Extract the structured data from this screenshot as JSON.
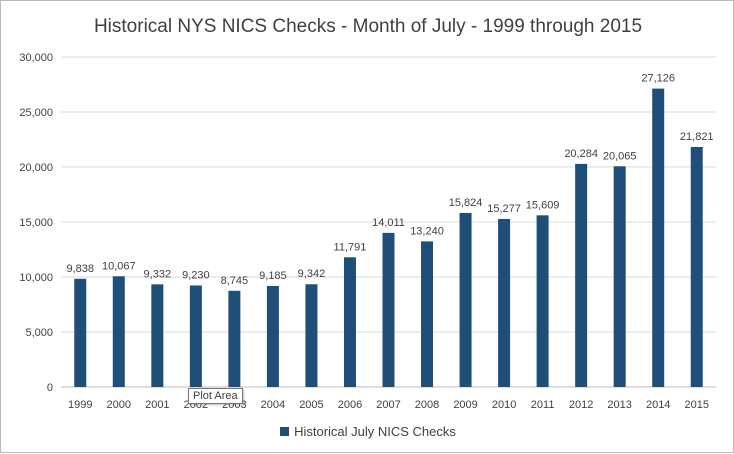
{
  "chart_data": {
    "type": "bar",
    "title": "Historical NYS NICS Checks - Month of July - 1999 through 2015",
    "xlabel": "",
    "ylabel": "",
    "categories": [
      "1999",
      "2000",
      "2001",
      "2002",
      "2003",
      "2004",
      "2005",
      "2006",
      "2007",
      "2008",
      "2009",
      "2010",
      "2011",
      "2012",
      "2013",
      "2014",
      "2015"
    ],
    "series": [
      {
        "name": "Historical July NICS Checks",
        "values": [
          9838,
          10067,
          9332,
          9230,
          8745,
          9185,
          9342,
          11791,
          14011,
          13240,
          15824,
          15277,
          15609,
          20284,
          20065,
          27126,
          21821
        ],
        "labels": [
          "9,838",
          "10,067",
          "9,332",
          "9,230",
          "8,745",
          "9,185",
          "9,342",
          "11,791",
          "14,011",
          "13,240",
          "15,824",
          "15,277",
          "15,609",
          "20,284",
          "20,065",
          "27,126",
          "21,821"
        ]
      }
    ],
    "ylim": [
      0,
      30000
    ],
    "yticks": [
      0,
      5000,
      10000,
      15000,
      20000,
      25000,
      30000
    ],
    "ytick_labels": [
      "0",
      "5,000",
      "10,000",
      "15,000",
      "20,000",
      "25,000",
      "30,000"
    ],
    "grid": true,
    "legend_position": "bottom",
    "colors": {
      "bar": "#1f4e79",
      "grid": "#d9d9d9",
      "text": "#404040"
    }
  },
  "tooltip": {
    "text": "Plot Area"
  }
}
